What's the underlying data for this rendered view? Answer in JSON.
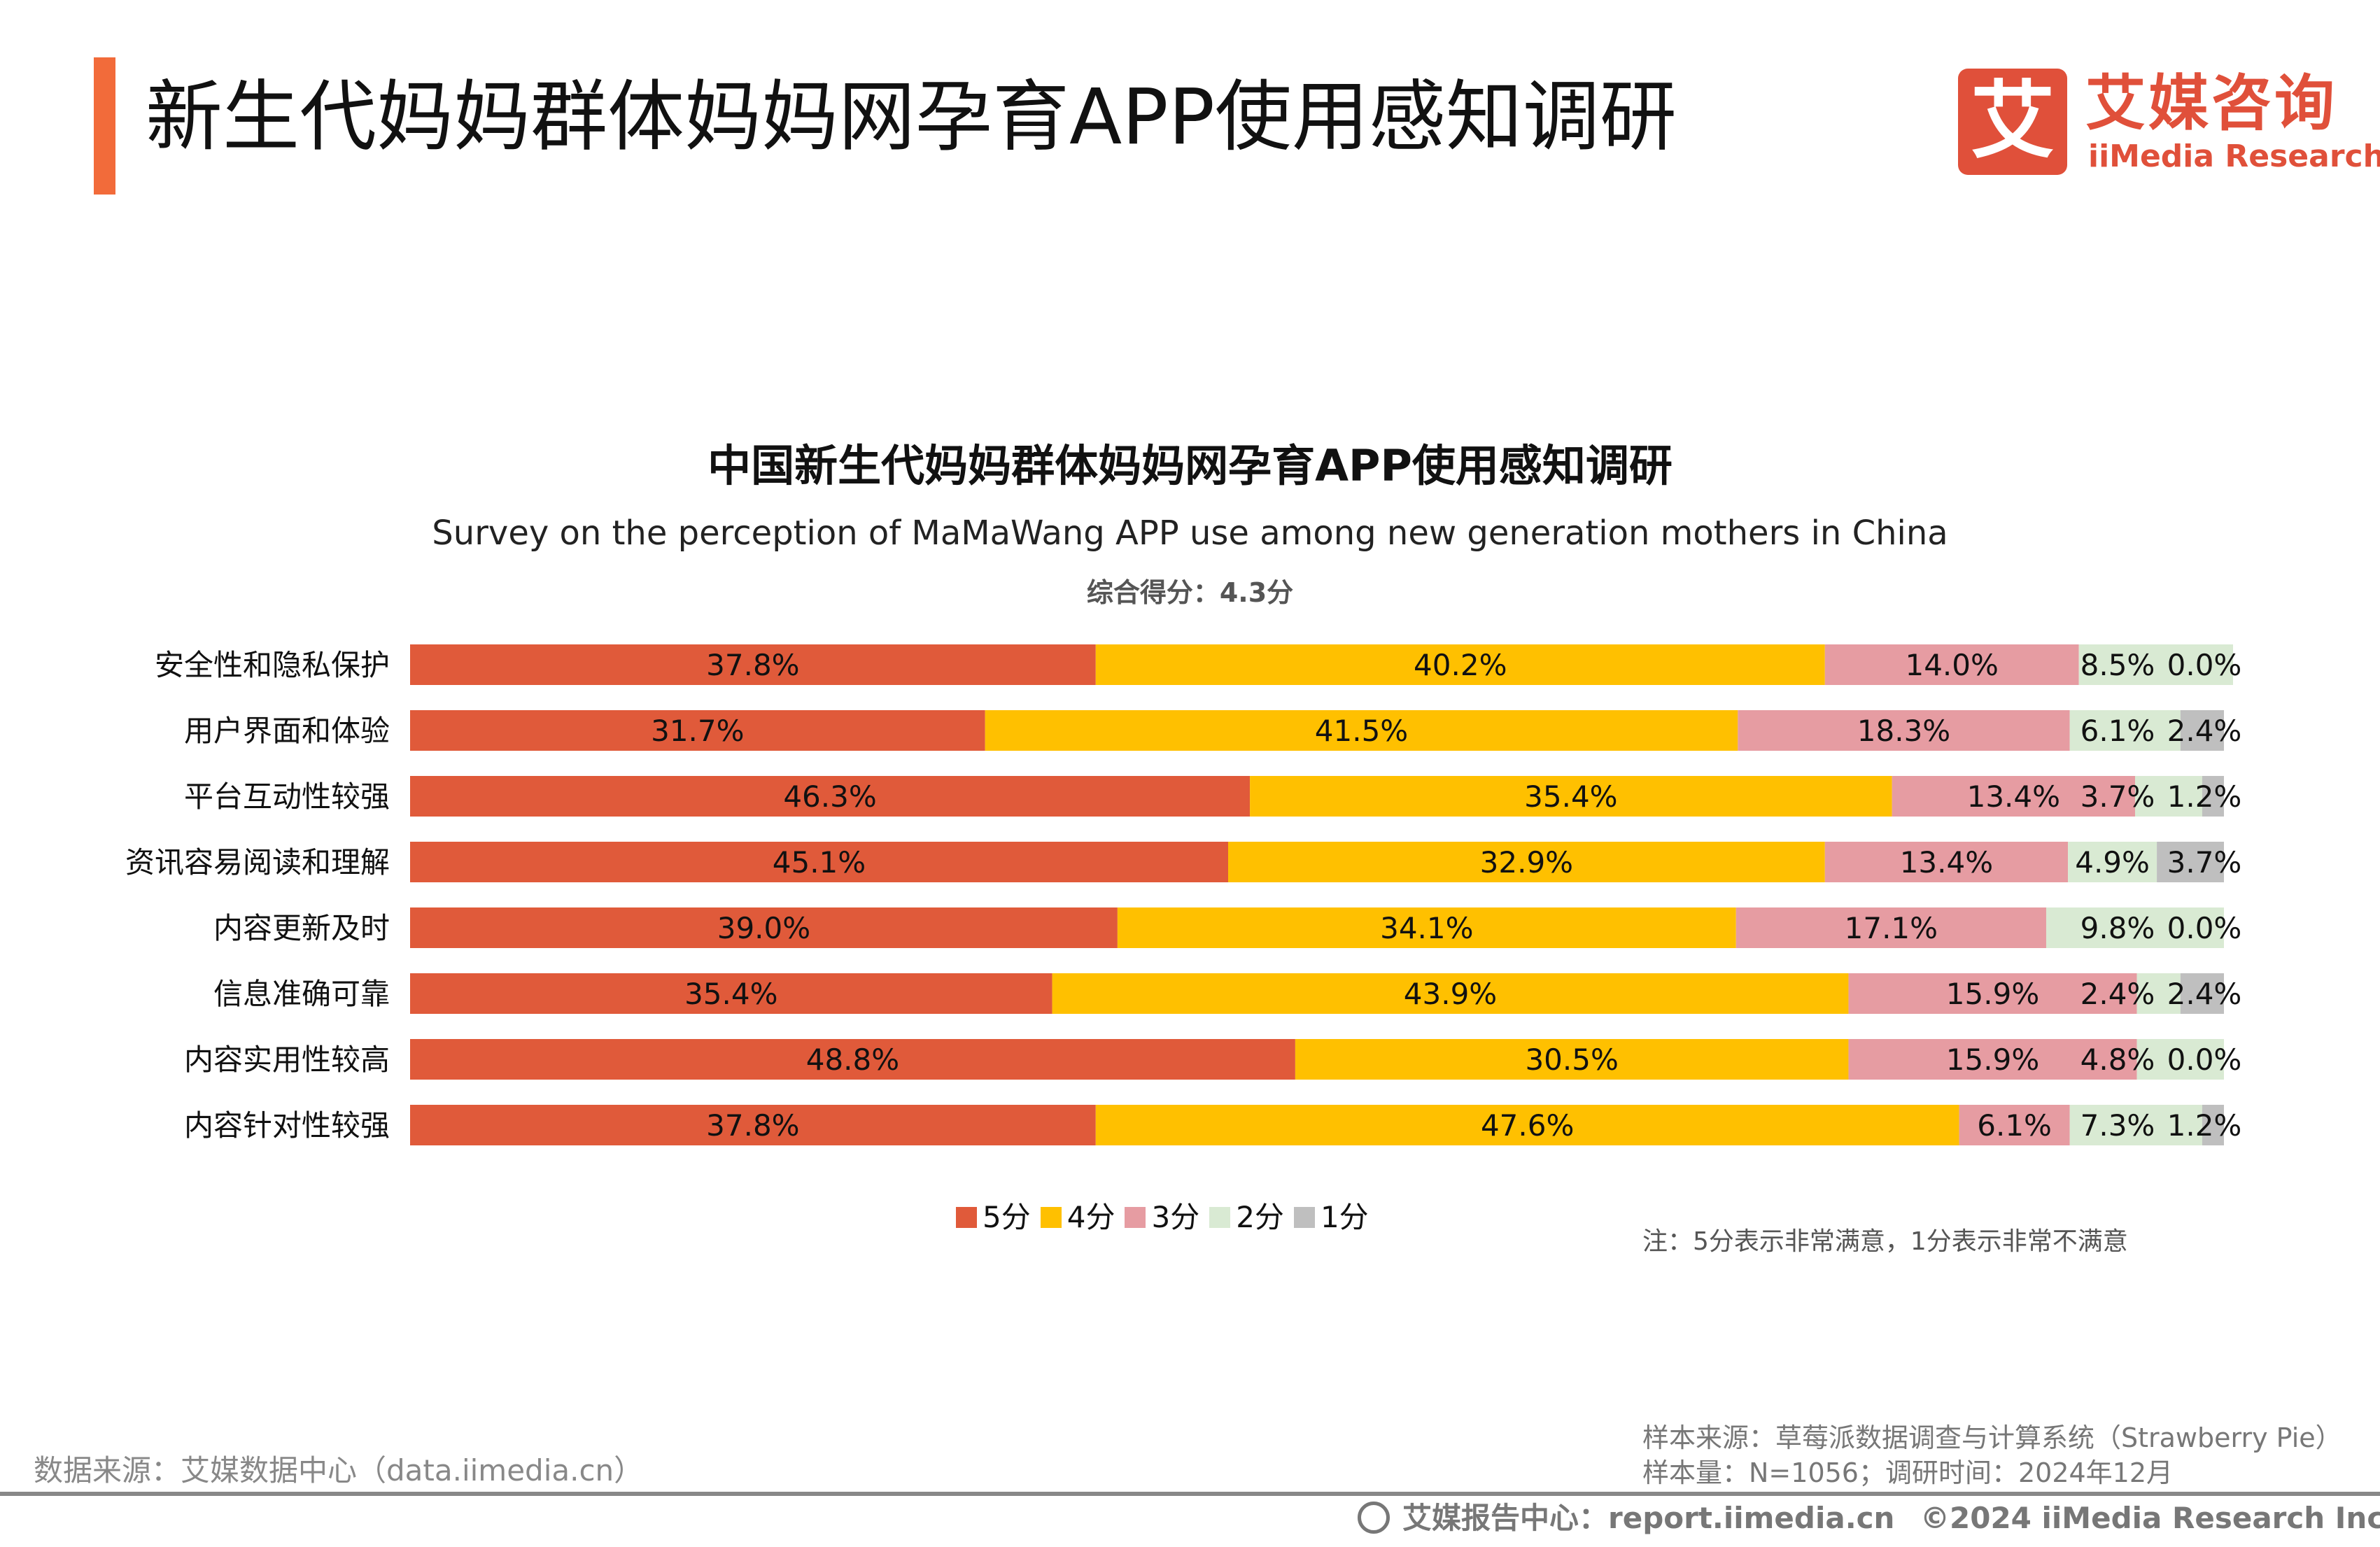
{
  "header": {
    "title": "新生代妈妈群体妈妈网孕育APP使用感知调研",
    "logo_mark": "艾",
    "logo_cn": "艾媒咨询",
    "logo_en": "iiMedia Research",
    "accent_color": "#F26B3A",
    "logo_color": "#E0503A"
  },
  "chart_data": {
    "type": "bar",
    "orientation": "horizontal",
    "stacked": "percent",
    "title": "中国新生代妈妈群体妈妈网孕育APP使用感知调研",
    "subtitle": "Survey on the perception of MaMaWang APP use among new generation mothers in China",
    "annotation": "综合得分：4.3分",
    "categories": [
      "安全性和隐私保护",
      "用户界面和体验",
      "平台互动性较强",
      "资讯容易阅读和理解",
      "内容更新及时",
      "信息准确可靠",
      "内容实用性较高",
      "内容针对性较强"
    ],
    "series": [
      {
        "name": "5分",
        "color": "#E05A3A",
        "values": [
          37.8,
          31.7,
          46.3,
          45.1,
          39.0,
          35.4,
          48.8,
          37.8
        ]
      },
      {
        "name": "4分",
        "color": "#FFC000",
        "values": [
          40.2,
          41.5,
          35.4,
          32.9,
          34.1,
          43.9,
          30.5,
          47.6
        ]
      },
      {
        "name": "3分",
        "color": "#E69CA2",
        "values": [
          14.0,
          18.3,
          13.4,
          13.4,
          17.1,
          15.9,
          15.9,
          6.1
        ]
      },
      {
        "name": "2分",
        "color": "#D9EAD3",
        "values": [
          8.5,
          6.1,
          3.7,
          4.9,
          9.8,
          2.4,
          4.8,
          7.3
        ]
      },
      {
        "name": "1分",
        "color": "#BFBFBF",
        "values": [
          0.0,
          2.4,
          1.2,
          3.7,
          0.0,
          2.4,
          0.0,
          1.2
        ]
      }
    ],
    "value_format": "%",
    "legend_position": "bottom",
    "grid": false
  },
  "note": "注：5分表示非常满意，1分表示非常不满意",
  "footer": {
    "source": "数据来源：艾媒数据中心（data.iimedia.cn）",
    "sample_source": "样本来源：草莓派数据调查与计算系统（Strawberry Pie）",
    "sample_size": "样本量：N=1056；调研时间：2024年12月",
    "report_center": "艾媒报告中心：report.iimedia.cn",
    "copyright": "©2024  iiMedia Research  Inc"
  }
}
